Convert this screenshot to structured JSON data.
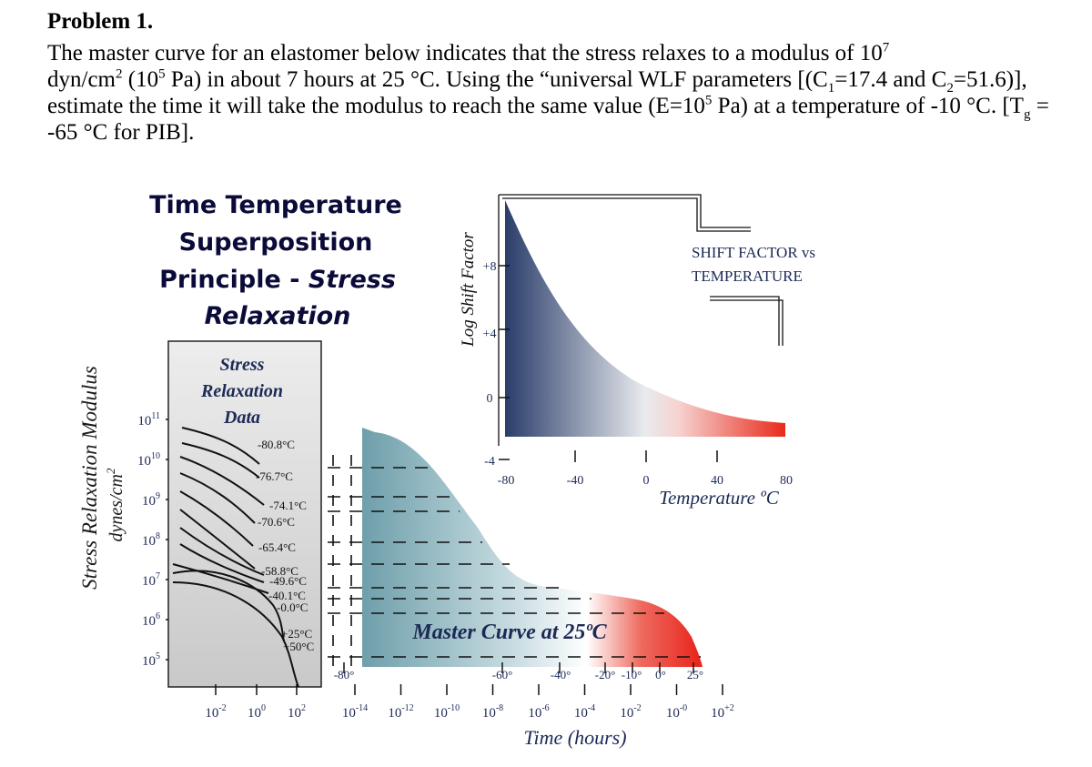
{
  "problem": {
    "heading": "Problem 1.",
    "t1": "The master curve for an elastomer below indicates that the stress relaxes to a modulus of 10",
    "t1_sup": "7",
    "t2": "dyn/cm",
    "t2_sup": "2",
    "t3": " (10",
    "t3_sup": "5",
    "t4": " Pa) in about 7 hours at 25 °C. Using the “universal WLF parameters [(C",
    "t4_sub": "1",
    "t5": "=17.4 and C",
    "t5_sub": "2",
    "t6": "=51.6)], estimate the time it will take the modulus to reach the same value (E=10",
    "t6_sup": "5",
    "t7": " Pa) at a temperature of -10 °C. [T",
    "t7_sub": "g",
    "t8": " = -65 °C for PIB]."
  },
  "figure": {
    "title_lines": [
      "Time Temperature",
      "Superposition",
      "Principle - ",
      "Relaxation"
    ],
    "title_italic": "Stress",
    "ylabel_main": "Stress Relaxation Modulus",
    "ylabel_unit": "dynes/cm",
    "ylabel_unit_sup": "2",
    "y_ticks": [
      {
        "base": "10",
        "exp": "11"
      },
      {
        "base": "10",
        "exp": "10"
      },
      {
        "base": "10",
        "exp": "9"
      },
      {
        "base": "10",
        "exp": "8"
      },
      {
        "base": "10",
        "exp": "7"
      },
      {
        "base": "10",
        "exp": "6"
      },
      {
        "base": "10",
        "exp": "5"
      }
    ],
    "data_panel_label": [
      "Stress",
      "Relaxation",
      "Data"
    ],
    "curve_temps": [
      "-80.8°C",
      "-76.7°C",
      "-74.1°C",
      "-70.6°C",
      "-65.4°C",
      "-58.8°C",
      "-49.6°C",
      "-40.1°C",
      "-0.0°C",
      "+25°C",
      "+50°C"
    ],
    "left_x_ticks": [
      {
        "base": "10",
        "exp": "-2"
      },
      {
        "base": "10",
        "exp": "0"
      },
      {
        "base": "10",
        "exp": "2"
      }
    ],
    "master_x_ticks": [
      {
        "base": "10",
        "exp": "-14"
      },
      {
        "base": "10",
        "exp": "-12"
      },
      {
        "base": "10",
        "exp": "-10"
      },
      {
        "base": "10",
        "exp": "-8"
      },
      {
        "base": "10",
        "exp": "-6"
      },
      {
        "base": "10",
        "exp": "-4"
      },
      {
        "base": "10",
        "exp": "-2"
      },
      {
        "base": "10",
        "exp": "-0"
      },
      {
        "base": "10",
        "exp": "+2"
      }
    ],
    "master_temp_labels": [
      "-80°",
      "-60°",
      "-40°",
      "-20°",
      "-10°",
      "0°",
      "25°"
    ],
    "master_label": "Master Curve at 25ºC",
    "xlabel": "Time (hours)",
    "inset": {
      "ylabel": "Log Shift Factor",
      "y_ticks": [
        "+8",
        "+4",
        "0",
        "-4"
      ],
      "x_ticks": [
        "-80",
        "-40",
        "0",
        "40",
        "80"
      ],
      "xlabel": "Temperature ºC",
      "title_lines": [
        "SHIFT FACTOR vs",
        "TEMPERATURE"
      ]
    }
  }
}
